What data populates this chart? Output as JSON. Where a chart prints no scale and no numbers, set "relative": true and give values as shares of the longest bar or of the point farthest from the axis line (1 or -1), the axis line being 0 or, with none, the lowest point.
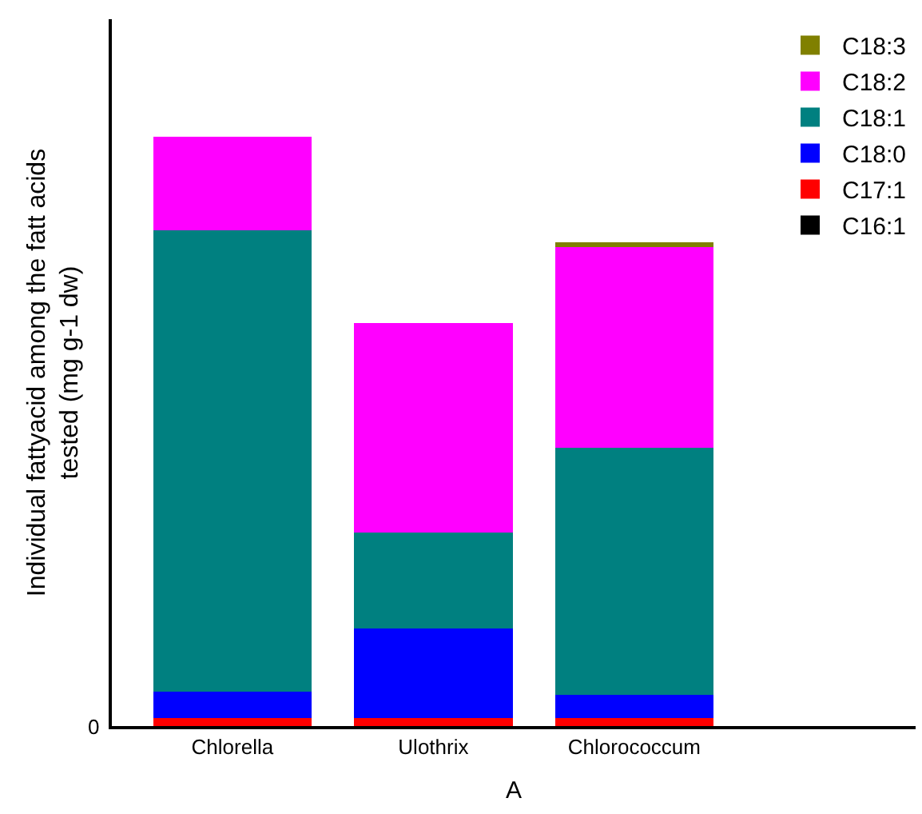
{
  "chart_data": {
    "type": "bar",
    "stacked": true,
    "relative": true,
    "xlabel": "A",
    "ylabel": "Individual fattyacid among the fatt acids\ntested (mg g-1 dw)",
    "categories": [
      "Chlorella",
      "Ulothrix",
      "Chlorococcum",
      null
    ],
    "legend": "top right",
    "annotations": [
      "0"
    ],
    "series": [
      {
        "name": "C16:1",
        "color": "#000000",
        "values": [
          0,
          0,
          0,
          null
        ]
      },
      {
        "name": "C17:1",
        "color": "#ff0000",
        "values": [
          0.013,
          0.013,
          0.013,
          null
        ]
      },
      {
        "name": "C18:0",
        "color": "#0000ff",
        "values": [
          0.045,
          0.152,
          0.04,
          null
        ]
      },
      {
        "name": "C18:1",
        "color": "#008080",
        "values": [
          0.783,
          0.163,
          0.42,
          null
        ]
      },
      {
        "name": "C18:2",
        "color": "#ff00ff",
        "values": [
          0.159,
          0.356,
          0.34,
          null
        ]
      },
      {
        "name": "C18:3",
        "color": "#808000",
        "values": [
          0,
          0,
          0.008,
          null
        ]
      }
    ]
  }
}
